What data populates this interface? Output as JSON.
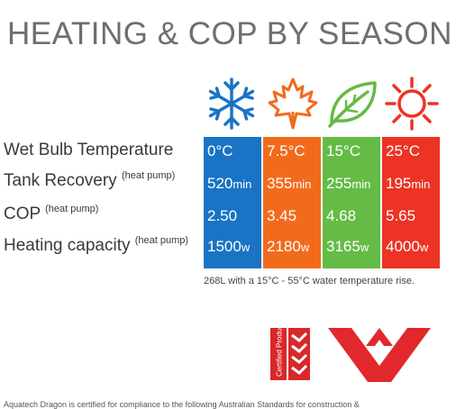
{
  "title": "HEATING & COP BY SEASON",
  "colors": {
    "winter": "#1a73c4",
    "autumn": "#f26b1d",
    "spring": "#64bb46",
    "summer": "#ec3324"
  },
  "icons": [
    "snowflake-icon",
    "maple-leaf-icon",
    "leaf-icon",
    "sun-icon"
  ],
  "rows": [
    {
      "label": "Wet Bulb Temperature",
      "note": ""
    },
    {
      "label": "Tank Recovery",
      "note": "(heat pump)"
    },
    {
      "label": "COP",
      "note": "(heat pump)"
    },
    {
      "label": "Heating capacity",
      "note": "(heat pump)"
    }
  ],
  "seasons": [
    {
      "temp": "0°C",
      "recovery": "520",
      "recovery_unit": "min",
      "cop": "2.50",
      "capacity": "1500",
      "capacity_unit": "w"
    },
    {
      "temp": "7.5°C",
      "recovery": "355",
      "recovery_unit": "min",
      "cop": "3.45",
      "capacity": "2180",
      "capacity_unit": "w"
    },
    {
      "temp": "15°C",
      "recovery": "255",
      "recovery_unit": "min",
      "cop": "4.68",
      "capacity": "3165",
      "capacity_unit": "w"
    },
    {
      "temp": "25°C",
      "recovery": "195",
      "recovery_unit": "min",
      "cop": "5.65",
      "capacity": "4000",
      "capacity_unit": "w"
    }
  ],
  "caption": "268L with a 15°C - 55°C water temperature rise.",
  "certified_text": "Certified Product",
  "footer": "Aquatech Dragon is certified for compliance to the following Australian Standards for construction &"
}
